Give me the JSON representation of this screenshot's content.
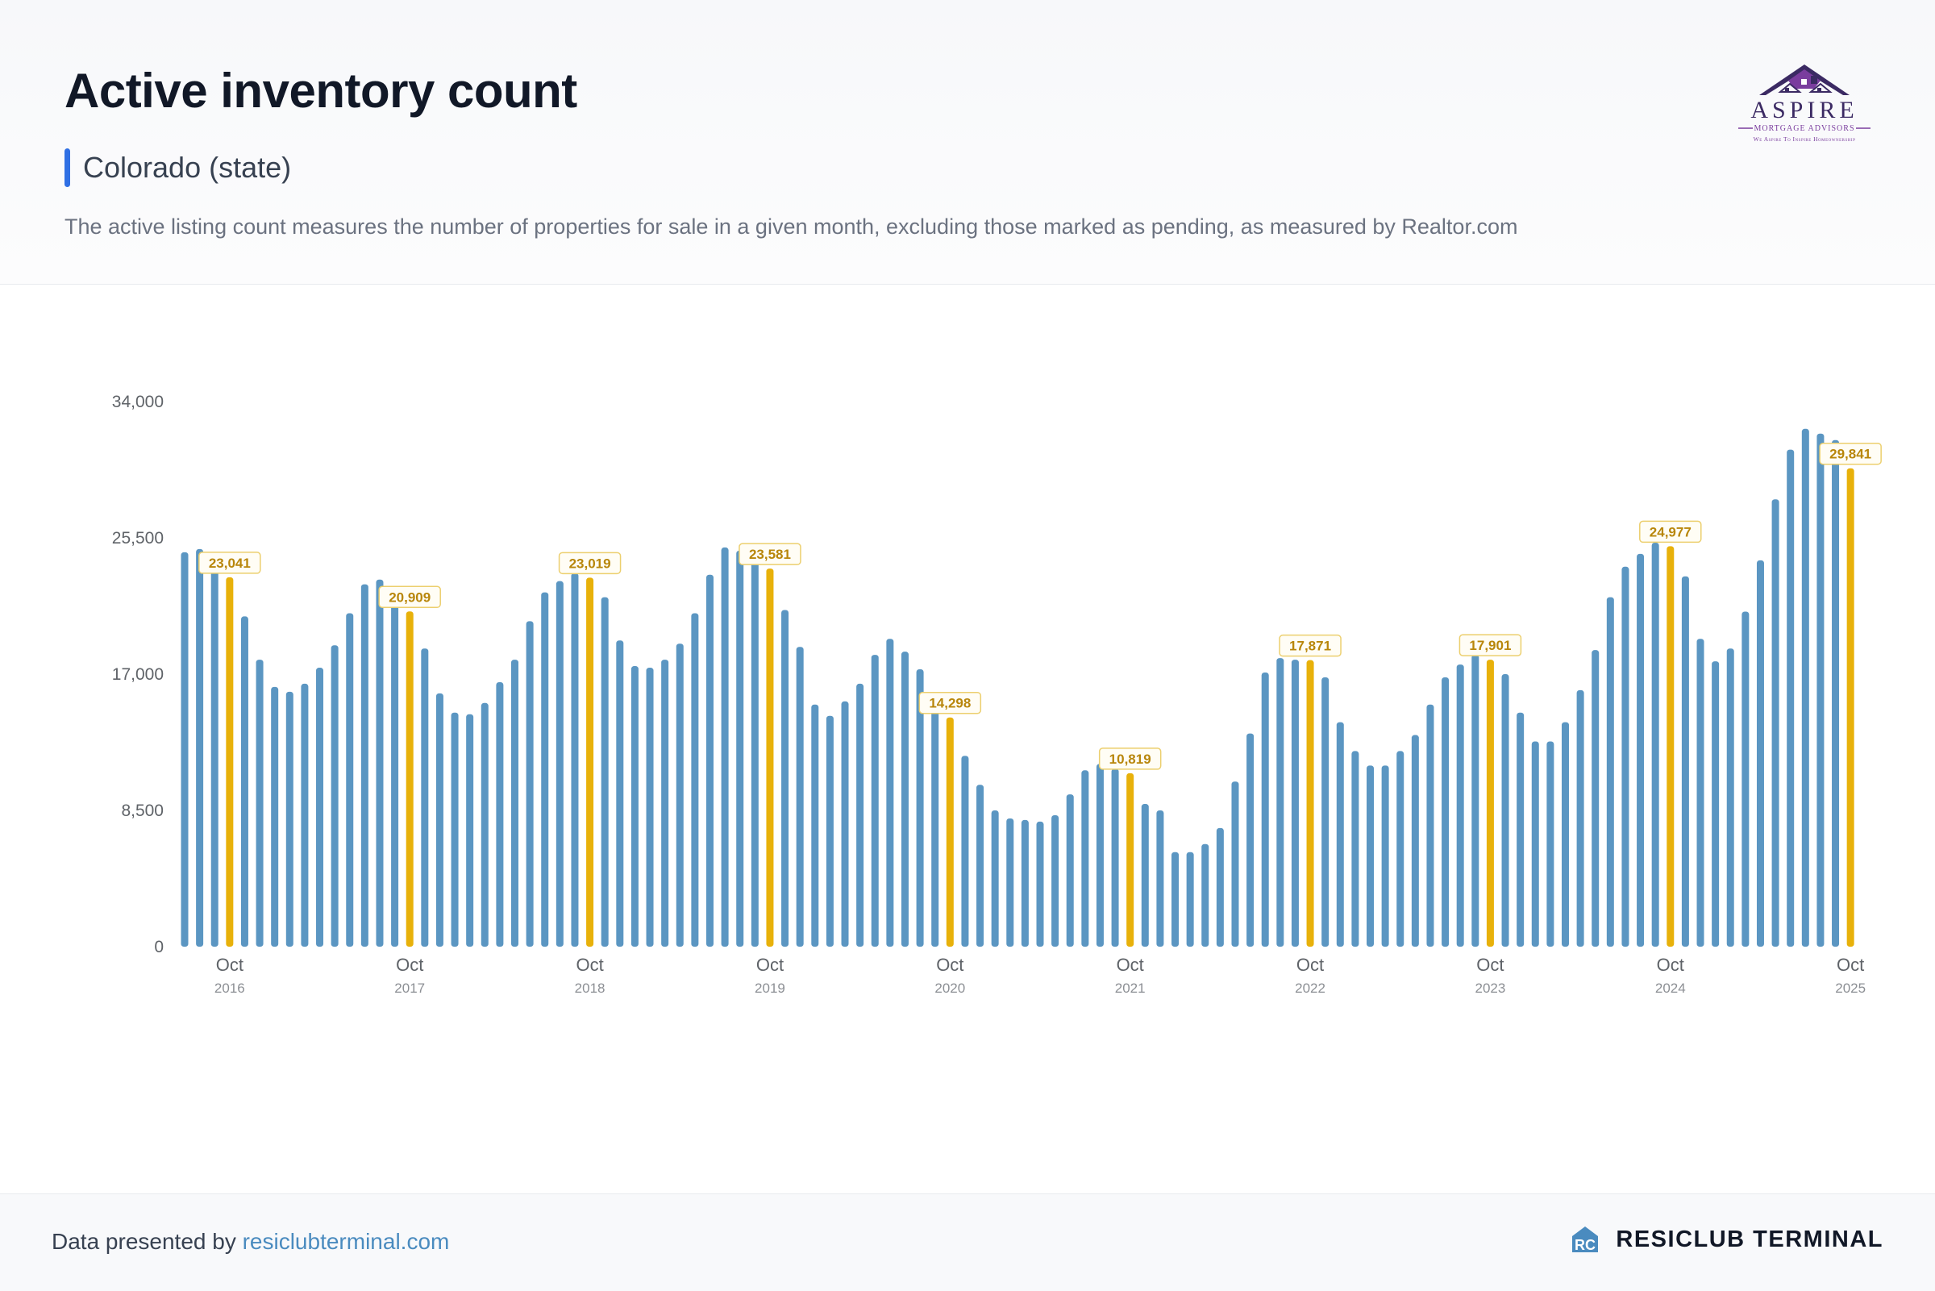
{
  "header": {
    "title": "Active inventory count",
    "region": "Colorado (state)",
    "description": "The active listing count measures the number of properties for sale in a given month, excluding those marked as pending, as measured by Realtor.com"
  },
  "logo": {
    "name": "ASPIRE",
    "sub": "MORTGAGE ADVISORS",
    "tagline": "We Aspire To Inspire Homeownership"
  },
  "footer": {
    "credit_prefix": "Data presented by",
    "credit_link": "resiclubterminal.com",
    "brand": "RESICLUB TERMINAL"
  },
  "colors": {
    "bar": "#5b96c2",
    "highlight": "#e8b10a",
    "label_text": "#b8860b",
    "label_border": "#eccf6e",
    "axis_text": "#5f6368",
    "year_text": "#8c8f94"
  },
  "chart_data": {
    "type": "bar",
    "title": "Active inventory count",
    "xlabel": "",
    "ylabel": "",
    "ylim": [
      0,
      34000
    ],
    "yticks": [
      0,
      8500,
      17000,
      25500,
      34000
    ],
    "ytick_labels": [
      "0",
      "8,500",
      "17,000",
      "25,500",
      "34,000"
    ],
    "grid": false,
    "start": "2016-07",
    "values": [
      24600,
      24800,
      24100,
      23041,
      20600,
      17900,
      16200,
      15900,
      16400,
      17400,
      18800,
      20800,
      22600,
      22900,
      22300,
      20909,
      18600,
      15800,
      14600,
      14500,
      15200,
      16500,
      17900,
      20300,
      22100,
      22800,
      23300,
      23019,
      21800,
      19100,
      17500,
      17400,
      17900,
      18900,
      20800,
      23200,
      24900,
      24700,
      24500,
      23581,
      21000,
      18700,
      15100,
      14400,
      15300,
      16400,
      18200,
      19200,
      18400,
      17300,
      15000,
      14298,
      11900,
      10100,
      8500,
      8000,
      7900,
      7800,
      8200,
      9500,
      11000,
      11400,
      11100,
      10819,
      8900,
      8500,
      5900,
      5900,
      6400,
      7400,
      10300,
      13300,
      17100,
      18000,
      17900,
      17871,
      16800,
      14000,
      12200,
      11300,
      11300,
      12200,
      13200,
      15100,
      16800,
      17600,
      18200,
      17901,
      17000,
      14600,
      12800,
      12800,
      14000,
      16000,
      18500,
      21800,
      23700,
      24500,
      25200,
      24977,
      23100,
      19200,
      17800,
      18600,
      20900,
      24100,
      27900,
      31000,
      32300,
      32000,
      31600,
      29841
    ],
    "highlights": [
      {
        "label": "Oct",
        "year": "2016",
        "value": 23041,
        "value_label": "23,041"
      },
      {
        "label": "Oct",
        "year": "2017",
        "value": 20909,
        "value_label": "20,909"
      },
      {
        "label": "Oct",
        "year": "2018",
        "value": 23019,
        "value_label": "23,019"
      },
      {
        "label": "Oct",
        "year": "2019",
        "value": 23581,
        "value_label": "23,581"
      },
      {
        "label": "Oct",
        "year": "2020",
        "value": 14298,
        "value_label": "14,298"
      },
      {
        "label": "Oct",
        "year": "2021",
        "value": 10819,
        "value_label": "10,819"
      },
      {
        "label": "Oct",
        "year": "2022",
        "value": 17871,
        "value_label": "17,871"
      },
      {
        "label": "Oct",
        "year": "2023",
        "value": 17901,
        "value_label": "17,901"
      },
      {
        "label": "Oct",
        "year": "2024",
        "value": 24977,
        "value_label": "24,977"
      },
      {
        "label": "Oct",
        "year": "2025",
        "value": 29841,
        "value_label": "29,841"
      }
    ]
  }
}
